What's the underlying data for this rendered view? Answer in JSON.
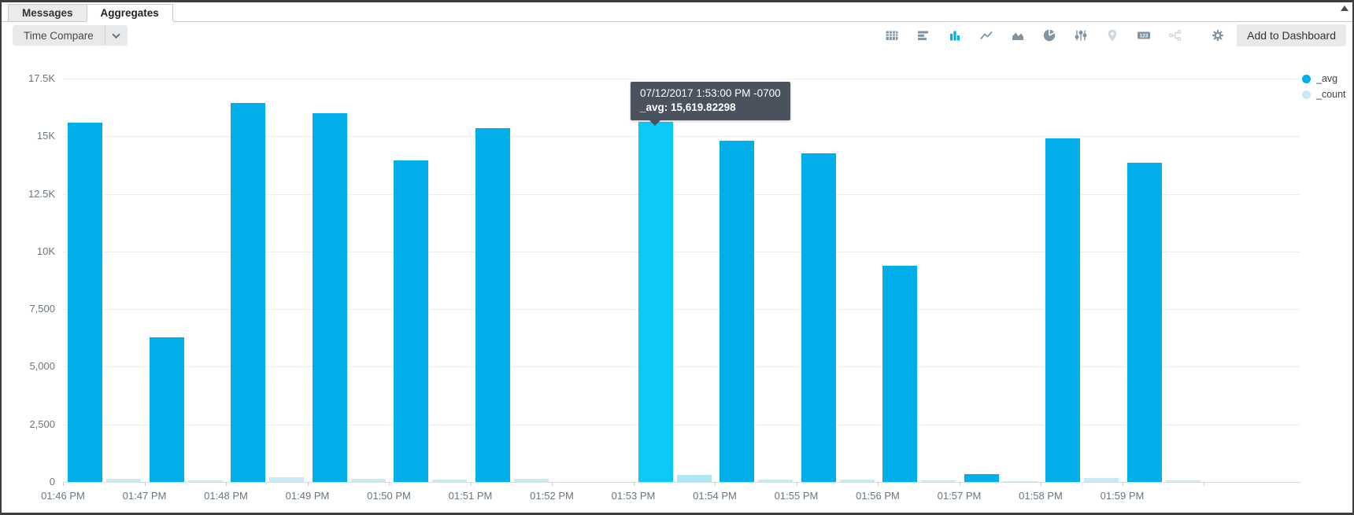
{
  "tabs": [
    {
      "label": "Messages",
      "active": false
    },
    {
      "label": "Aggregates",
      "active": true
    }
  ],
  "toolbar": {
    "time_compare_label": "Time Compare",
    "add_to_dashboard_label": "Add to Dashboard",
    "icons": [
      {
        "name": "table-icon",
        "state": "normal"
      },
      {
        "name": "bar-chart-horizontal-icon",
        "state": "normal"
      },
      {
        "name": "bar-chart-vertical-icon",
        "state": "active"
      },
      {
        "name": "line-chart-icon",
        "state": "normal"
      },
      {
        "name": "area-chart-icon",
        "state": "normal"
      },
      {
        "name": "pie-chart-icon",
        "state": "normal"
      },
      {
        "name": "sliders-icon",
        "state": "normal"
      },
      {
        "name": "map-pin-icon",
        "state": "disabled"
      },
      {
        "name": "numeric-badge-icon",
        "state": "normal"
      },
      {
        "name": "flow-icon",
        "state": "disabled"
      },
      {
        "name": "gear-icon",
        "state": "normal"
      }
    ]
  },
  "tooltip": {
    "line1": "07/12/2017 1:53:00 PM -0700",
    "line2": "_avg: 15,619.82298"
  },
  "legend": [
    {
      "label": "_avg",
      "color": "#00aee9"
    },
    {
      "label": "_count",
      "color": "#c9eaf2"
    }
  ],
  "chart_data": {
    "type": "bar",
    "title": "",
    "xlabel": "",
    "ylabel": "",
    "grid": true,
    "legend_position": "top-right",
    "ylim": [
      0,
      17500
    ],
    "yticks": [
      {
        "value": 0,
        "label": "0"
      },
      {
        "value": 2500,
        "label": "2,500"
      },
      {
        "value": 5000,
        "label": "5,000"
      },
      {
        "value": 7500,
        "label": "7,500"
      },
      {
        "value": 10000,
        "label": "10K"
      },
      {
        "value": 12500,
        "label": "12.5K"
      },
      {
        "value": 15000,
        "label": "15K"
      },
      {
        "value": 17500,
        "label": "17.5K"
      }
    ],
    "categories": [
      "01:46 PM",
      "01:47 PM",
      "01:48 PM",
      "01:49 PM",
      "01:50 PM",
      "01:51 PM",
      "01:52 PM",
      "01:53 PM",
      "01:54 PM",
      "01:55 PM",
      "01:56 PM",
      "01:57 PM",
      "01:58 PM",
      "01:59 PM"
    ],
    "highlight_index": 7,
    "series": [
      {
        "name": "_avg",
        "color": "#00aee9",
        "highlight_color": "#0bc8f8",
        "values": [
          15600,
          6280,
          16430,
          16000,
          13940,
          15350,
          null,
          15619.82298,
          14810,
          14270,
          9370,
          350,
          14900,
          13850
        ]
      },
      {
        "name": "_count",
        "color": "#c9eaf2",
        "highlight_color": "#aee6f3",
        "values": [
          140,
          80,
          190,
          120,
          100,
          140,
          null,
          300,
          110,
          90,
          60,
          50,
          160,
          80
        ]
      }
    ]
  }
}
